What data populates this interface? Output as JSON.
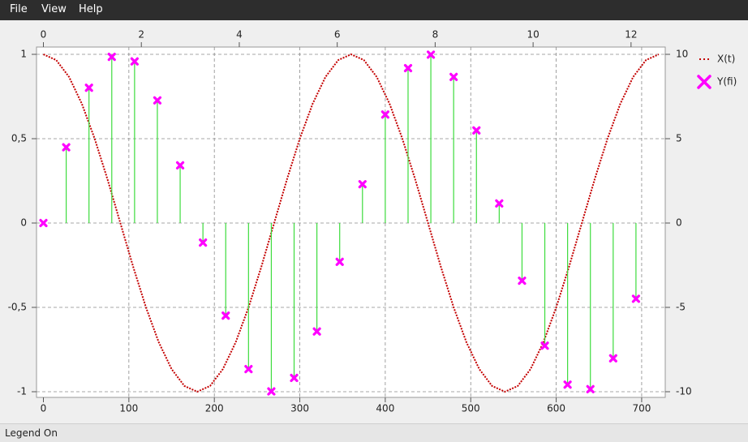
{
  "menu": [
    "File",
    "View",
    "Help"
  ],
  "status": "Legend On",
  "chart_data": {
    "type": "line-stem",
    "grid": true,
    "legend": "right",
    "xlim": [
      0,
      720
    ],
    "xticks": [
      0,
      100,
      200,
      300,
      400,
      500,
      600,
      700
    ],
    "x2lim": [
      0,
      12.566
    ],
    "x2ticks": [
      0,
      2,
      4,
      6,
      8,
      10,
      12
    ],
    "ylim": [
      -1,
      1
    ],
    "yticks": [
      {
        "value": -1,
        "label": "-1"
      },
      {
        "value": -0.5,
        "label": "-0,5"
      },
      0,
      {
        "value": 0.5,
        "label": "0,5"
      },
      1
    ],
    "y2lim": [
      -10,
      10
    ],
    "y2ticks": [
      -10,
      -5,
      0,
      5,
      10
    ],
    "series": [
      {
        "name": "X(t)",
        "color": "#c40000",
        "axis": "x2",
        "x": [
          0,
          0.262,
          0.524,
          0.785,
          1.047,
          1.309,
          1.571,
          1.833,
          2.094,
          2.356,
          2.618,
          2.88,
          3.142,
          3.403,
          3.665,
          3.927,
          4.189,
          4.451,
          4.712,
          4.974,
          5.236,
          5.498,
          5.76,
          6.021,
          6.283,
          6.545,
          6.807,
          7.069,
          7.33,
          7.592,
          7.854,
          8.116,
          8.378,
          8.639,
          8.901,
          9.163,
          9.425,
          9.687,
          9.948,
          10.21,
          10.472,
          10.734,
          10.996,
          11.257,
          11.519,
          11.781,
          12.043,
          12.305,
          12.566
        ],
        "values": [
          1,
          0.966,
          0.866,
          0.707,
          0.5,
          0.259,
          0,
          -0.259,
          -0.5,
          -0.707,
          -0.866,
          -0.966,
          -1,
          -0.966,
          -0.866,
          -0.707,
          -0.5,
          -0.259,
          0,
          0.259,
          0.5,
          0.707,
          0.866,
          0.966,
          1,
          0.966,
          0.866,
          0.707,
          0.5,
          0.259,
          0,
          -0.259,
          -0.5,
          -0.707,
          -0.866,
          -0.966,
          -1,
          -0.966,
          -0.866,
          -0.707,
          -0.5,
          -0.259,
          0,
          0.259,
          0.5,
          0.707,
          0.866,
          0.966,
          1
        ]
      },
      {
        "name": "Y(fi)",
        "color": "#ff00ff",
        "stem_color": "#3ddc3d",
        "axis": "y2",
        "x": [
          0,
          26.67,
          53.33,
          80,
          106.67,
          133.33,
          160,
          186.67,
          213.33,
          240,
          266.67,
          293.33,
          320,
          346.67,
          373.33,
          400,
          426.67,
          453.33,
          480,
          506.67,
          533.33,
          560,
          586.67,
          613.33,
          640,
          666.67,
          693.33
        ],
        "values": [
          0,
          4.49,
          8.02,
          9.85,
          9.58,
          7.27,
          3.42,
          -1.16,
          -5.49,
          -8.66,
          -9.98,
          -9.18,
          -6.43,
          -2.3,
          2.3,
          6.43,
          9.18,
          9.98,
          8.66,
          5.49,
          1.16,
          -3.42,
          -7.27,
          -9.58,
          -9.85,
          -8.02,
          -4.49
        ]
      }
    ]
  }
}
